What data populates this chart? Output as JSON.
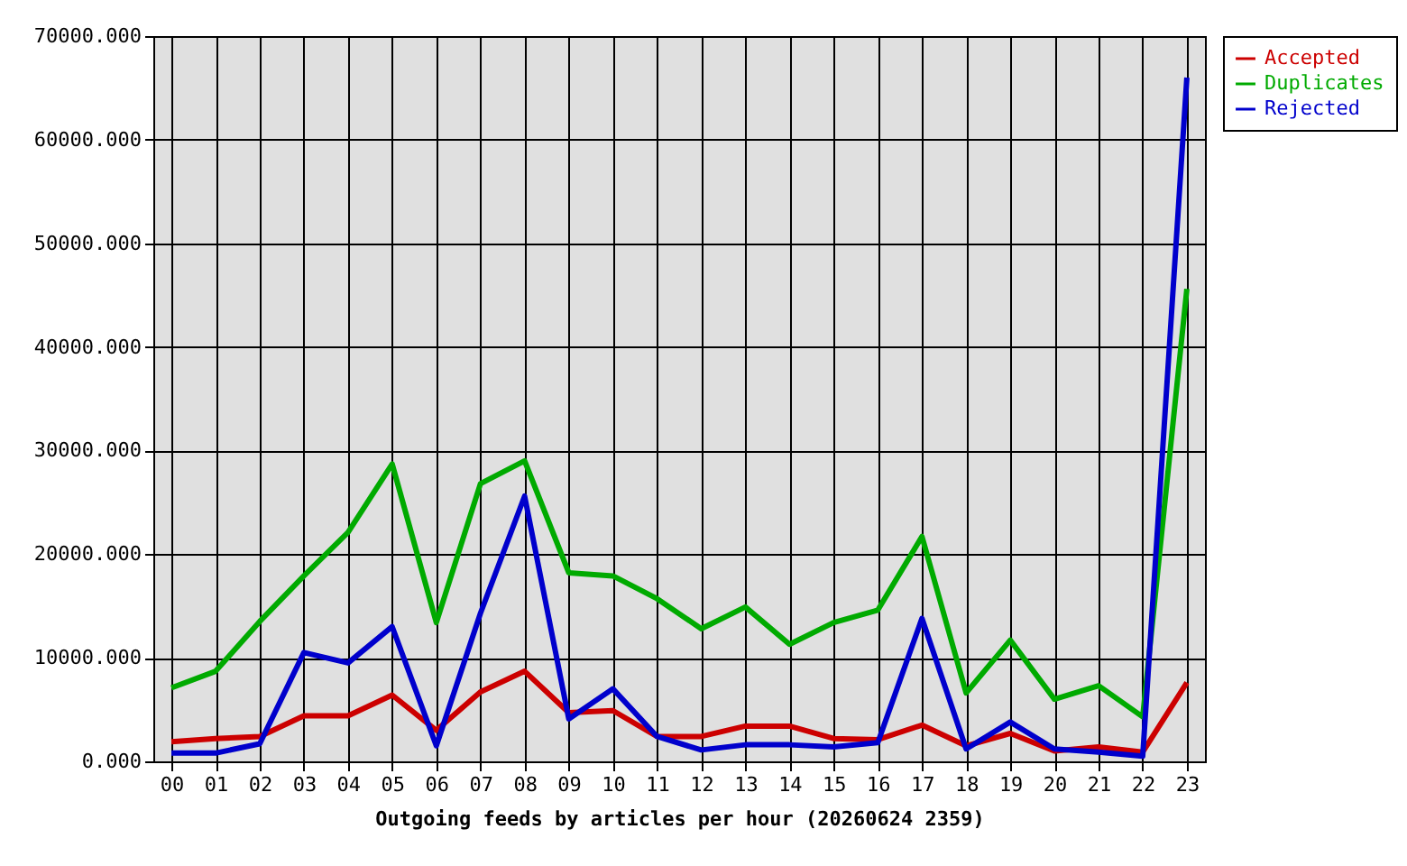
{
  "chart_data": {
    "type": "line",
    "xlabel": "Outgoing feeds by articles per hour (20260624 2359)",
    "categories": [
      "00",
      "01",
      "02",
      "03",
      "04",
      "05",
      "06",
      "07",
      "08",
      "09",
      "10",
      "11",
      "12",
      "13",
      "14",
      "15",
      "16",
      "17",
      "18",
      "19",
      "20",
      "21",
      "22",
      "23"
    ],
    "series": [
      {
        "name": "Accepted",
        "color": "#cc0000",
        "values": [
          1900,
          2200,
          2400,
          4400,
          4400,
          6400,
          3000,
          6700,
          8700,
          4700,
          4900,
          2400,
          2400,
          3400,
          3400,
          2200,
          2100,
          3500,
          1500,
          2700,
          1000,
          1400,
          900,
          7600
        ]
      },
      {
        "name": "Duplicates",
        "color": "#00aa00",
        "values": [
          7100,
          8700,
          13500,
          17900,
          22100,
          28700,
          13400,
          26800,
          29000,
          18200,
          17900,
          15700,
          12800,
          14900,
          11300,
          13400,
          14600,
          21700,
          6600,
          11700,
          6000,
          7300,
          4300,
          45600
        ]
      },
      {
        "name": "Rejected",
        "color": "#0000cc",
        "values": [
          800,
          800,
          1700,
          10500,
          9500,
          13000,
          1500,
          14300,
          25600,
          4100,
          7000,
          2400,
          1100,
          1600,
          1600,
          1400,
          1800,
          13800,
          1200,
          3800,
          1200,
          900,
          500,
          66000
        ]
      }
    ],
    "ylim": [
      0,
      70000
    ],
    "yticks": [
      {
        "value": 0,
        "label": "0.000"
      },
      {
        "value": 10000,
        "label": "10000.000"
      },
      {
        "value": 20000,
        "label": "20000.000"
      },
      {
        "value": 30000,
        "label": "30000.000"
      },
      {
        "value": 40000,
        "label": "40000.000"
      },
      {
        "value": 50000,
        "label": "50000.000"
      },
      {
        "value": 60000,
        "label": "60000.000"
      },
      {
        "value": 70000,
        "label": "70000.000"
      }
    ],
    "grid": true,
    "legend": "top right"
  }
}
